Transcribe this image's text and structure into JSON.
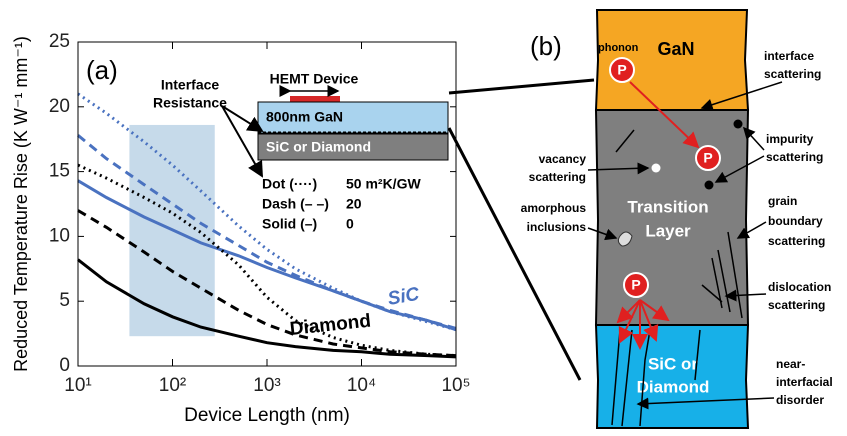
{
  "chart_data": {
    "type": "line",
    "xscale": "log",
    "x": [
      10,
      20,
      50,
      100,
      200,
      500,
      1000,
      2000,
      5000,
      10000,
      20000,
      50000,
      100000
    ],
    "xlim": [
      10,
      100000
    ],
    "xticks": [
      {
        "value": 10,
        "label": "10¹"
      },
      {
        "value": 100,
        "label": "10²"
      },
      {
        "value": 1000,
        "label": "10³"
      },
      {
        "value": 10000,
        "label": "10⁴"
      },
      {
        "value": 100000,
        "label": "10⁵"
      }
    ],
    "ylim": [
      0,
      25
    ],
    "yticks": [
      0,
      5,
      10,
      15,
      20,
      25
    ],
    "xlabel": "Device Length (nm)",
    "ylabel": "Reduced Temperature Rise (K W⁻¹ mm⁻¹)",
    "series": [
      {
        "color": "#4a72c0",
        "style": "dotted",
        "values": [
          21,
          19.5,
          17.3,
          15.5,
          13.5,
          10.8,
          9,
          7.5,
          6,
          5,
          4.2,
          3.4,
          2.8
        ]
      },
      {
        "color": "#4a72c0",
        "style": "dashed",
        "values": [
          17.8,
          16,
          14,
          12.5,
          11,
          9.3,
          8,
          7,
          5.8,
          5,
          4.3,
          3.5,
          2.9
        ]
      },
      {
        "color": "#4a72c0",
        "style": "solid",
        "values": [
          14.3,
          13,
          11.5,
          10.5,
          9.5,
          8.5,
          7.6,
          6.8,
          5.8,
          5,
          4.2,
          3.5,
          2.8
        ]
      },
      {
        "color": "#000000",
        "style": "dotted",
        "values": [
          15.5,
          14.5,
          13,
          11.8,
          10.3,
          7.8,
          5.3,
          3.5,
          2.2,
          1.6,
          1.2,
          0.9,
          0.8
        ]
      },
      {
        "color": "#000000",
        "style": "dashed",
        "values": [
          12,
          10.7,
          8.8,
          7.3,
          6,
          4.3,
          3.2,
          2.4,
          1.7,
          1.4,
          1.1,
          0.9,
          0.8
        ]
      },
      {
        "color": "#000000",
        "style": "solid",
        "values": [
          8.2,
          6.5,
          4.8,
          3.8,
          3,
          2.3,
          1.8,
          1.5,
          1.2,
          1.1,
          0.9,
          0.8,
          0.7
        ]
      }
    ],
    "shaded_region": {
      "x": [
        35,
        280
      ],
      "y": [
        2.3,
        18.6
      ],
      "color": "#bcd3e6"
    },
    "annotations": {
      "panel": "(a)",
      "sic": "SiC",
      "diamond": "Diamond",
      "interface_resistance": [
        "Interface",
        "Resistance"
      ],
      "hemt_device": "HEMT Device",
      "gan_layer": "800nm GaN",
      "substrate": "SiC or Diamond",
      "legend_rows": [
        [
          "Dot (····)",
          "50 m²K/GW"
        ],
        [
          "Dash (– –)",
          "20"
        ],
        [
          "Solid (–)",
          "0"
        ]
      ]
    }
  },
  "diagram": {
    "panel": "(b)",
    "gan": "GaN",
    "phonon": "phonon",
    "particle": "P",
    "transition": [
      "Transition",
      "Layer"
    ],
    "substrate": [
      "SiC or",
      "Diamond"
    ],
    "interface_scattering": [
      "interface",
      "scattering"
    ],
    "impurity_scattering": [
      "impurity",
      "scattering"
    ],
    "vacancy_scattering": [
      "vacancy",
      "scattering"
    ],
    "amorphous_inclusions": [
      "amorphous",
      "inclusions"
    ],
    "grain_boundary_scattering": [
      "grain",
      "boundary",
      "scattering"
    ],
    "dislocation_scattering": [
      "dislocation",
      "scattering"
    ],
    "near_interfacial_disorder": [
      "near-",
      "interfacial",
      "disorder"
    ]
  }
}
